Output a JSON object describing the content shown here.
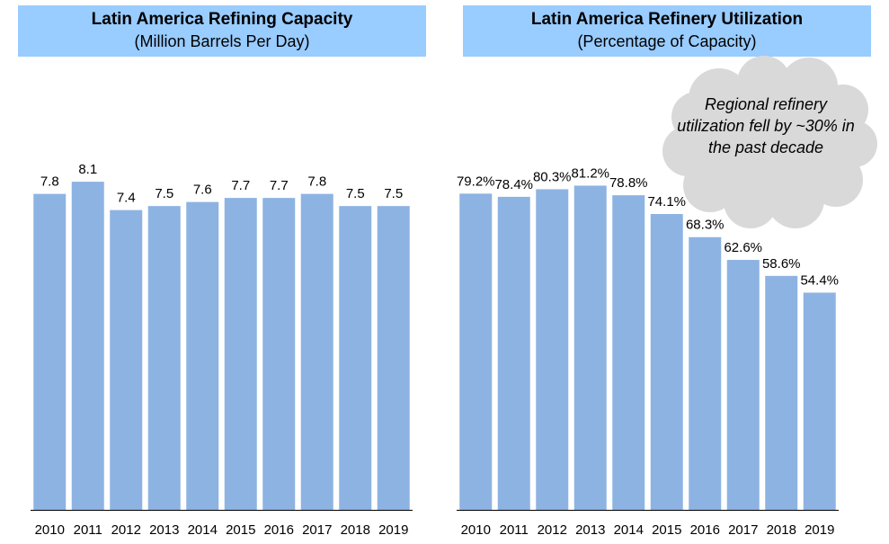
{
  "colors": {
    "bar": "#8db3e2",
    "title_bg": "#99ccff",
    "cloud": "#d9d9d9",
    "axis": "#000000"
  },
  "left": {
    "title": "Latin America Refining Capacity",
    "subtitle": "(Million Barrels Per Day)"
  },
  "right": {
    "title": "Latin America Refinery Utilization",
    "subtitle": "(Percentage of Capacity)"
  },
  "annotation": {
    "text": "Regional refinery utilization fell by ~30% in the past decade"
  },
  "chart_data": [
    {
      "type": "bar",
      "title": "Latin America Refining Capacity",
      "subtitle": "(Million Barrels Per Day)",
      "categories": [
        "2010",
        "2011",
        "2012",
        "2013",
        "2014",
        "2015",
        "2016",
        "2017",
        "2018",
        "2019"
      ],
      "values": [
        7.8,
        8.1,
        7.4,
        7.5,
        7.6,
        7.7,
        7.7,
        7.8,
        7.5,
        7.5
      ],
      "labels": [
        "7.8",
        "8.1",
        "7.4",
        "7.5",
        "7.6",
        "7.7",
        "7.7",
        "7.8",
        "7.5",
        "7.5"
      ],
      "ylim": [
        0,
        10.5
      ],
      "grid": false
    },
    {
      "type": "bar",
      "title": "Latin America Refinery Utilization",
      "subtitle": "(Percentage of Capacity)",
      "categories": [
        "2010",
        "2011",
        "2012",
        "2013",
        "2014",
        "2015",
        "2016",
        "2017",
        "2018",
        "2019"
      ],
      "values": [
        79.2,
        78.4,
        80.3,
        81.2,
        78.8,
        74.1,
        68.3,
        62.6,
        58.6,
        54.4
      ],
      "labels": [
        "79.2%",
        "78.4%",
        "80.3%",
        "81.2%",
        "78.8%",
        "74.1%",
        "68.3%",
        "62.6%",
        "58.6%",
        "54.4%"
      ],
      "ylim": [
        0,
        100
      ],
      "grid": false
    }
  ]
}
